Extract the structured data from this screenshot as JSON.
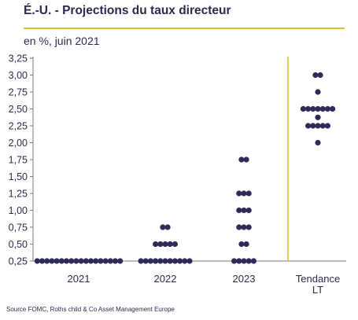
{
  "header": {
    "title": "É.-U. - Projections du taux directeur",
    "subtitle": "en %, juin 2021"
  },
  "source": "Source FOMC, Roths child & Co Asset Management Europe",
  "colors": {
    "dots": "#2e2b58",
    "axis": "#7a7a7a",
    "accent": "#d9c22e",
    "text": "#2b2a4c"
  },
  "chart_data": {
    "type": "scatter",
    "title": "É.-U. - Projections du taux directeur",
    "subtitle": "en %, juin 2021",
    "ylim": [
      0.25,
      3.25
    ],
    "y_ticks": [
      "0,25",
      "0,50",
      "0,75",
      "1,00",
      "1,25",
      "1,50",
      "1,75",
      "2,00",
      "2,25",
      "2,50",
      "2,75",
      "3,00",
      "3,25"
    ],
    "grid": false,
    "categories": [
      {
        "label": "2021",
        "label_lines": [
          "2021"
        ],
        "points": [
          {
            "y": 0.25,
            "count": 18
          }
        ]
      },
      {
        "label": "2022",
        "label_lines": [
          "2022"
        ],
        "points": [
          {
            "y": 0.25,
            "count": 11
          },
          {
            "y": 0.5,
            "count": 5
          },
          {
            "y": 0.75,
            "count": 2
          }
        ]
      },
      {
        "label": "2023",
        "label_lines": [
          "2023"
        ],
        "points": [
          {
            "y": 0.25,
            "count": 5
          },
          {
            "y": 0.5,
            "count": 2
          },
          {
            "y": 0.75,
            "count": 3
          },
          {
            "y": 1.0,
            "count": 3
          },
          {
            "y": 1.25,
            "count": 3
          },
          {
            "y": 1.75,
            "count": 2
          }
        ]
      },
      {
        "label": "Tendance LT",
        "label_lines": [
          "Tendance",
          "LT"
        ],
        "points": [
          {
            "y": 2.0,
            "count": 1
          },
          {
            "y": 2.25,
            "count": 5
          },
          {
            "y": 2.375,
            "count": 1
          },
          {
            "y": 2.5,
            "count": 7
          },
          {
            "y": 2.75,
            "count": 1
          },
          {
            "y": 3.0,
            "count": 2
          }
        ]
      }
    ]
  }
}
